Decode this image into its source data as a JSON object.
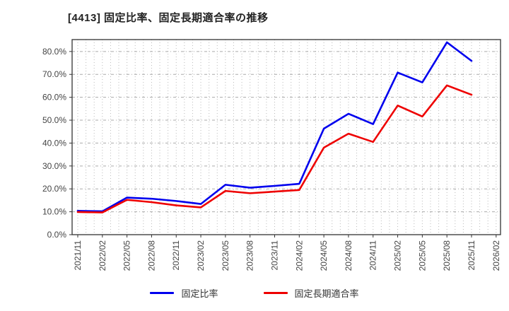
{
  "page": {
    "background": "#ffffff"
  },
  "chart_data": {
    "type": "line",
    "title": "[4413]  固定比率、固定長期適合率の推移",
    "categories": [
      "2021/11",
      "2022/02",
      "2022/05",
      "2022/08",
      "2022/11",
      "2023/02",
      "2023/05",
      "2023/08",
      "2023/11",
      "2024/02",
      "2024/05",
      "2024/08",
      "2024/11",
      "2025/02",
      "2025/05",
      "2025/08",
      "2025/11",
      "2026/02"
    ],
    "series": [
      {
        "name": "固定比率",
        "color": "#0000ee",
        "values": [
          10.4,
          10.2,
          16.2,
          15.7,
          14.7,
          13.4,
          21.8,
          20.5,
          21.3,
          22.2,
          46.3,
          52.8,
          48.3,
          70.8,
          66.5,
          84.0,
          75.9,
          null
        ]
      },
      {
        "name": "固定長期適合率",
        "color": "#ee0000",
        "values": [
          9.9,
          9.7,
          15.2,
          14.2,
          12.8,
          11.9,
          19.1,
          18.1,
          18.8,
          19.5,
          38.0,
          44.1,
          40.5,
          56.4,
          51.6,
          65.2,
          61.1,
          null
        ]
      }
    ],
    "xlabel": "",
    "ylabel": "",
    "ylim": [
      0,
      85.2
    ],
    "ytick_labels": [
      "0.0%",
      "10.0%",
      "20.0%",
      "30.0%",
      "40.0%",
      "50.0%",
      "60.0%",
      "70.0%",
      "80.0%"
    ],
    "grid": true,
    "minor_x_gridlines_per_interval": 3,
    "legend_position": "bottom",
    "axis_color": "#333333",
    "gridline_color": "#bbbbbb",
    "tick_label_color": "#444444"
  }
}
